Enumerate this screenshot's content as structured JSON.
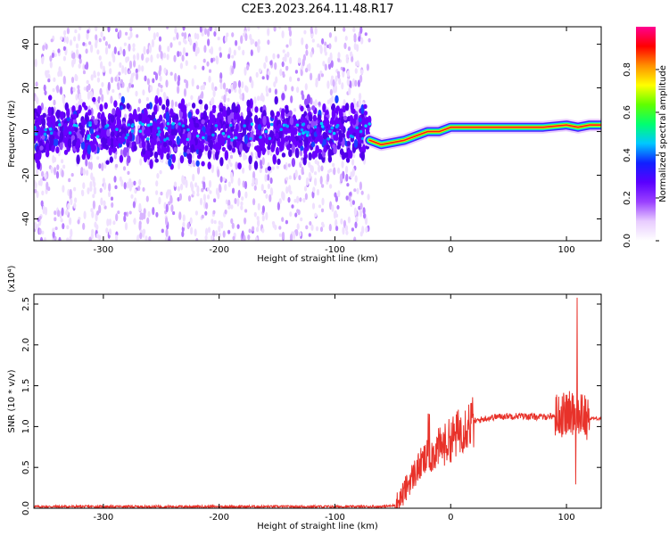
{
  "title": "C2E3.2023.264.11.48.R17",
  "chart_data": [
    {
      "type": "heatmap",
      "xlabel": "Height of straight line (km)",
      "ylabel": "Frequency (Hz)",
      "xlim": [
        -360,
        130
      ],
      "ylim": [
        -50,
        48
      ],
      "xticks": [
        -300,
        -200,
        -100,
        0,
        100
      ],
      "yticks": [
        -40,
        -20,
        0,
        20,
        40
      ],
      "colorbar": {
        "label": "Normalized spectral amplitude",
        "range": [
          0,
          1
        ],
        "ticks": [
          "0.0",
          "0.2",
          "0.4",
          "0.6",
          "0.8"
        ],
        "colors": [
          "#ffffff",
          "#e8ccff",
          "#9a40ff",
          "#5a00ff",
          "#1020ff",
          "#00c8ff",
          "#00ff70",
          "#60ff00",
          "#ffff00",
          "#ff9000",
          "#ff0000",
          "#ff0090"
        ]
      },
      "ridge": {
        "x": [
          -70,
          -60,
          -50,
          -40,
          -30,
          -20,
          -10,
          0,
          20,
          40,
          60,
          80,
          100,
          110,
          120,
          130
        ],
        "y": [
          -4,
          -6,
          -5,
          -4,
          -2,
          0,
          0,
          2,
          2,
          2,
          2,
          2,
          3,
          2,
          3,
          3
        ]
      }
    },
    {
      "type": "line",
      "xlabel": "Height of straight line (km)",
      "ylabel": "SNR (10 * v/v)",
      "y_multiplier": "(x10⁴)",
      "xlim": [
        -360,
        130
      ],
      "ylim": [
        0,
        2.62
      ],
      "xticks": [
        -300,
        -200,
        -100,
        0,
        100
      ],
      "yticks": [
        "0.0",
        "0.5",
        "1.0",
        "1.5",
        "2.0",
        "2.5"
      ],
      "color": "#e8322a",
      "x": [
        -360,
        -60,
        -50,
        -45,
        -40,
        -35,
        -30,
        -25,
        -20,
        -15,
        -10,
        -5,
        0,
        5,
        10,
        15,
        20,
        25,
        30,
        40,
        50,
        60,
        70,
        80,
        90,
        95,
        100,
        105,
        108,
        110,
        112,
        115,
        120,
        125,
        130
      ],
      "y": [
        0.02,
        0.02,
        0.03,
        0.08,
        0.2,
        0.35,
        0.45,
        0.55,
        0.62,
        0.68,
        0.74,
        0.78,
        0.84,
        0.9,
        0.98,
        1.04,
        1.06,
        1.08,
        1.1,
        1.12,
        1.13,
        1.13,
        1.12,
        1.12,
        1.13,
        1.14,
        1.15,
        1.17,
        1.2,
        1.1,
        1.18,
        1.13,
        1.1,
        1.1,
        1.1
      ]
    }
  ]
}
